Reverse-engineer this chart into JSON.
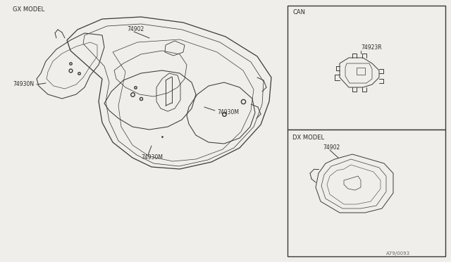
{
  "bg_color": "#f0eeea",
  "line_color": "#3a3a3a",
  "text_color": "#2a2a2a",
  "fig_width": 6.4,
  "fig_height": 3.72,
  "dpi": 100,
  "main_label": "GX MODEL",
  "can_label": "CAN",
  "dx_label": "DX MODEL",
  "part_74902": "74902",
  "part_74930N": "74930N",
  "part_74930M_r": "74930M",
  "part_74930M_b": "74930M",
  "part_74923R": "74923R",
  "part_74902_dx": "74902",
  "diagram_code": "A79/0093"
}
